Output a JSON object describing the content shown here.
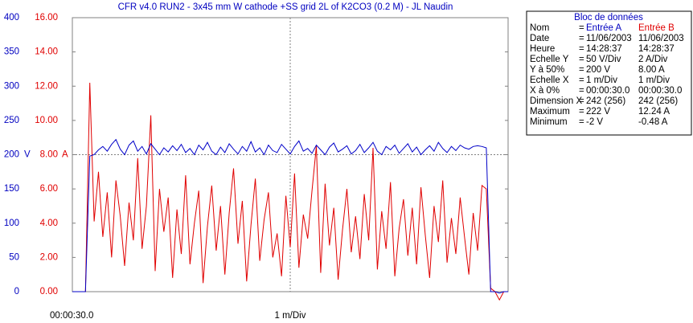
{
  "chart_data": {
    "type": "line",
    "title": "CFR v4.0 RUN2 - 3x45 mm W cathode +SS grid 2L of K2CO3 (0.2 M) - JL Naudin",
    "x_start_label": "00:00:30.0",
    "x_label": "1 m/Div",
    "y_unit": "V",
    "y2_unit": "A",
    "ylim": [
      0,
      400
    ],
    "yticks": [
      0,
      50,
      100,
      150,
      200,
      250,
      300,
      350,
      400
    ],
    "y_color": "#0000c0",
    "y2lim": [
      0,
      16
    ],
    "y2ticks": [
      {
        "value": 0,
        "label": "0.00"
      },
      {
        "value": 2,
        "label": "2.00"
      },
      {
        "value": 4,
        "label": "4.00"
      },
      {
        "value": 6,
        "label": "6.00"
      },
      {
        "value": 8,
        "label": "8.00"
      },
      {
        "value": 10,
        "label": "10.00"
      },
      {
        "value": 12,
        "label": "12.00"
      },
      {
        "value": 14,
        "label": "14.00"
      },
      {
        "value": 16,
        "label": "16.00"
      }
    ],
    "y2_color": "#e00000",
    "grid": true,
    "series": [
      {
        "name": "Entrée A",
        "color": "#0000c8",
        "axis": "y",
        "values": [
          0,
          0,
          0,
          0,
          198,
          200,
          207,
          212,
          205,
          215,
          222,
          208,
          200,
          214,
          220,
          205,
          212,
          201,
          216,
          208,
          200,
          210,
          204,
          213,
          206,
          215,
          203,
          209,
          200,
          214,
          207,
          218,
          205,
          200,
          211,
          203,
          216,
          208,
          201,
          212,
          205,
          219,
          204,
          210,
          200,
          214,
          206,
          203,
          215,
          208,
          201,
          212,
          220,
          205,
          209,
          202,
          214,
          207,
          200,
          211,
          217,
          204,
          208,
          213,
          201,
          206,
          215,
          203,
          210,
          218,
          205,
          200,
          212,
          207,
          214,
          202,
          209,
          216,
          204,
          211,
          200,
          207,
          213,
          205,
          218,
          209,
          203,
          212,
          206,
          214,
          210,
          208,
          212,
          213,
          212,
          210,
          0,
          0,
          -2,
          0,
          0
        ]
      },
      {
        "name": "Entrée B",
        "color": "#e00000",
        "axis": "y2",
        "values": [
          0,
          0,
          0,
          0,
          12.2,
          4.1,
          7.0,
          3.2,
          5.8,
          2.0,
          6.5,
          4.4,
          1.5,
          5.2,
          3.0,
          7.8,
          2.5,
          5.0,
          10.3,
          1.2,
          6.0,
          3.5,
          5.5,
          0.8,
          4.8,
          2.2,
          6.8,
          1.6,
          4.0,
          5.9,
          0.5,
          3.8,
          6.2,
          2.4,
          5.0,
          1.0,
          4.6,
          7.2,
          2.8,
          5.3,
          0.6,
          3.9,
          6.6,
          1.8,
          4.2,
          5.8,
          2.0,
          3.4,
          0.9,
          5.6,
          2.6,
          6.9,
          1.4,
          4.5,
          3.1,
          5.9,
          8.5,
          1.1,
          6.3,
          2.7,
          4.9,
          0.7,
          3.6,
          6.0,
          2.3,
          4.4,
          1.9,
          5.7,
          3.0,
          8.4,
          1.3,
          4.7,
          2.5,
          6.4,
          0.9,
          3.7,
          5.4,
          2.1,
          4.9,
          1.6,
          6.1,
          3.3,
          0.8,
          5.0,
          2.9,
          6.5,
          1.7,
          4.3,
          2.2,
          5.5,
          3.2,
          1.0,
          4.6,
          2.4,
          6.2,
          6.0,
          0.2,
          0,
          -0.48,
          0,
          0
        ]
      }
    ]
  },
  "data_block": {
    "title": "Bloc de données",
    "rows": [
      [
        "Nom",
        "=",
        "Entrée A",
        "Entrée B"
      ],
      [
        "Date",
        "=",
        "11/06/2003",
        "11/06/2003"
      ],
      [
        "Heure",
        "=",
        "14:28:37",
        "14:28:37"
      ],
      [
        "Echelle Y",
        "=",
        "50 V/Div",
        "2 A/Div"
      ],
      [
        "Y à 50%",
        "=",
        "200 V",
        "8.00 A"
      ],
      [
        "Echelle X",
        "=",
        "1 m/Div",
        "1 m/Div"
      ],
      [
        "X à 0%",
        "=",
        "00:00:30.0",
        "00:00:30.0"
      ],
      [
        "Dimension X",
        "=",
        "242 (256)",
        "242 (256)"
      ],
      [
        "Maximum",
        "=",
        "222 V",
        "12.24 A"
      ],
      [
        "Minimum",
        "=",
        "-2 V",
        "-0.48 A"
      ]
    ]
  }
}
